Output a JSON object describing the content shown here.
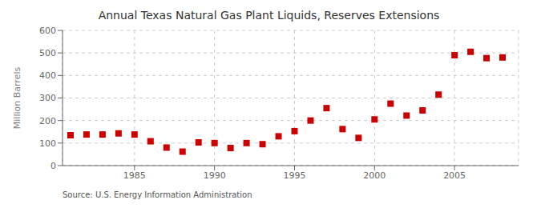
{
  "chart_data": {
    "type": "scatter",
    "title": "Annual Texas Natural Gas Plant Liquids, Reserves Extensions",
    "ylabel": "Million Barrels",
    "annotation": "Source: U.S. Energy Information Administration",
    "x": [
      1981,
      1982,
      1983,
      1984,
      1985,
      1986,
      1987,
      1988,
      1989,
      1990,
      1991,
      1992,
      1993,
      1994,
      1995,
      1996,
      1997,
      1998,
      1999,
      2000,
      2001,
      2002,
      2003,
      2004,
      2005,
      2006,
      2007,
      2008
    ],
    "values": [
      135,
      138,
      138,
      143,
      138,
      108,
      80,
      62,
      103,
      100,
      78,
      100,
      95,
      130,
      153,
      200,
      255,
      162,
      123,
      205,
      275,
      222,
      245,
      315,
      490,
      505,
      477,
      480
    ],
    "color": "#cc0000",
    "marker": "square",
    "grid": true,
    "xlim": [
      1980.5,
      2009
    ],
    "xticks": [
      1985,
      1990,
      1995,
      2000,
      2005
    ],
    "ylim": [
      0,
      600
    ],
    "yticks": [
      0,
      100,
      200,
      300,
      400,
      500,
      600
    ]
  }
}
